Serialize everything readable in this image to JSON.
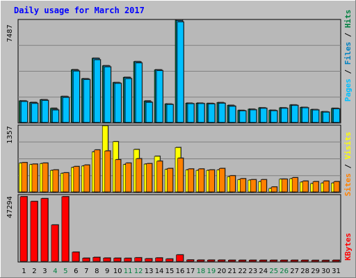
{
  "title": "Daily usage for March 2017",
  "colors": {
    "background": "#c0c0c0",
    "plot_background": "#b8b8b8",
    "title_text": "#0000ff",
    "hits": "#008040",
    "files": "#0080c0",
    "pages": "#00c0ff",
    "visits": "#ff8000",
    "sites": "#ffff00",
    "kbytes": "#ff0000",
    "weekend_day": "#008040",
    "weekday": "#000000"
  },
  "chart_data": [
    {
      "type": "bar",
      "panel": "hits-files-pages",
      "ylabel_parts": [
        "Pages",
        "Files",
        "Hits"
      ],
      "y_max_label": "7487",
      "ylim": [
        0,
        7487
      ],
      "categories": [
        "1",
        "2",
        "3",
        "4",
        "5",
        "6",
        "7",
        "8",
        "9",
        "10",
        "11",
        "12",
        "13",
        "14",
        "15",
        "16",
        "17",
        "18",
        "19",
        "20",
        "21",
        "22",
        "23",
        "24",
        "25",
        "26",
        "27",
        "28",
        "29",
        "30",
        "31"
      ],
      "series": [
        {
          "name": "Hits",
          "values": [
            1580,
            1460,
            1660,
            1030,
            1900,
            3860,
            3200,
            4700,
            4150,
            2920,
            3300,
            4450,
            1570,
            3850,
            1350,
            7487,
            1410,
            1410,
            1390,
            1450,
            1250,
            880,
            970,
            1070,
            890,
            1070,
            1280,
            1100,
            940,
            780,
            1030
          ]
        },
        {
          "name": "Files",
          "values": [
            1560,
            1440,
            1650,
            960,
            1880,
            3820,
            3180,
            4680,
            4130,
            2890,
            3280,
            4430,
            1510,
            3840,
            1330,
            7460,
            1380,
            1390,
            1370,
            1420,
            1210,
            850,
            940,
            1050,
            870,
            1050,
            1260,
            1090,
            930,
            760,
            1010
          ]
        },
        {
          "name": "Pages",
          "values": [
            1520,
            1380,
            1600,
            900,
            1820,
            3750,
            3130,
            4580,
            4060,
            2850,
            3200,
            4350,
            1460,
            3780,
            1300,
            7350,
            1360,
            1370,
            1340,
            1390,
            1170,
            830,
            910,
            1020,
            840,
            1020,
            1230,
            1060,
            900,
            740,
            980
          ]
        }
      ]
    },
    {
      "type": "bar",
      "panel": "sites-visits",
      "ylabel_parts": [
        "Sites",
        "Visits"
      ],
      "y_max_label": "1357",
      "ylim": [
        0,
        1357
      ],
      "categories": [
        "1",
        "2",
        "3",
        "4",
        "5",
        "6",
        "7",
        "8",
        "9",
        "10",
        "11",
        "12",
        "13",
        "14",
        "15",
        "16",
        "17",
        "18",
        "19",
        "20",
        "21",
        "22",
        "23",
        "24",
        "25",
        "26",
        "27",
        "28",
        "29",
        "30",
        "31"
      ],
      "series": [
        {
          "name": "Visits",
          "values": [
            600,
            570,
            590,
            450,
            390,
            520,
            550,
            860,
            840,
            660,
            590,
            680,
            580,
            630,
            480,
            690,
            470,
            470,
            450,
            480,
            330,
            270,
            250,
            250,
            100,
            260,
            290,
            220,
            210,
            220,
            210
          ]
        },
        {
          "name": "Sites",
          "values": [
            590,
            560,
            580,
            440,
            380,
            500,
            530,
            820,
            1357,
            1030,
            560,
            870,
            570,
            730,
            460,
            910,
            450,
            440,
            440,
            450,
            310,
            250,
            240,
            210,
            70,
            260,
            270,
            200,
            170,
            180,
            180
          ]
        }
      ]
    },
    {
      "type": "bar",
      "panel": "kbytes",
      "ylabel_parts": [
        "KBytes"
      ],
      "y_max_label": "47294",
      "ylim": [
        0,
        47294
      ],
      "categories": [
        "1",
        "2",
        "3",
        "4",
        "5",
        "6",
        "7",
        "8",
        "9",
        "10",
        "11",
        "12",
        "13",
        "14",
        "15",
        "16",
        "17",
        "18",
        "19",
        "20",
        "21",
        "22",
        "23",
        "24",
        "25",
        "26",
        "27",
        "28",
        "29",
        "30",
        "31"
      ],
      "series": [
        {
          "name": "KBytes",
          "values": [
            47294,
            43800,
            45900,
            26600,
            47294,
            6700,
            2300,
            2900,
            2400,
            2300,
            2200,
            2600,
            1900,
            2500,
            1700,
            4700,
            1000,
            900,
            900,
            900,
            800,
            800,
            800,
            800,
            800,
            800,
            800,
            800,
            700,
            700,
            800
          ]
        }
      ]
    }
  ],
  "x_axis_day_labels": [
    {
      "day": "1",
      "weekend": false
    },
    {
      "day": "2",
      "weekend": false
    },
    {
      "day": "3",
      "weekend": false
    },
    {
      "day": "4",
      "weekend": true
    },
    {
      "day": "5",
      "weekend": true
    },
    {
      "day": "6",
      "weekend": false
    },
    {
      "day": "7",
      "weekend": false
    },
    {
      "day": "8",
      "weekend": false
    },
    {
      "day": "9",
      "weekend": false
    },
    {
      "day": "10",
      "weekend": false
    },
    {
      "day": "11",
      "weekend": true
    },
    {
      "day": "12",
      "weekend": true
    },
    {
      "day": "13",
      "weekend": false
    },
    {
      "day": "14",
      "weekend": false
    },
    {
      "day": "15",
      "weekend": false
    },
    {
      "day": "16",
      "weekend": false
    },
    {
      "day": "17",
      "weekend": false
    },
    {
      "day": "18",
      "weekend": true
    },
    {
      "day": "19",
      "weekend": true
    },
    {
      "day": "20",
      "weekend": false
    },
    {
      "day": "21",
      "weekend": false
    },
    {
      "day": "22",
      "weekend": false
    },
    {
      "day": "23",
      "weekend": false
    },
    {
      "day": "24",
      "weekend": false
    },
    {
      "day": "25",
      "weekend": true
    },
    {
      "day": "26",
      "weekend": true
    },
    {
      "day": "27",
      "weekend": false
    },
    {
      "day": "28",
      "weekend": false
    },
    {
      "day": "29",
      "weekend": false
    },
    {
      "day": "30",
      "weekend": false
    },
    {
      "day": "31",
      "weekend": false
    }
  ]
}
